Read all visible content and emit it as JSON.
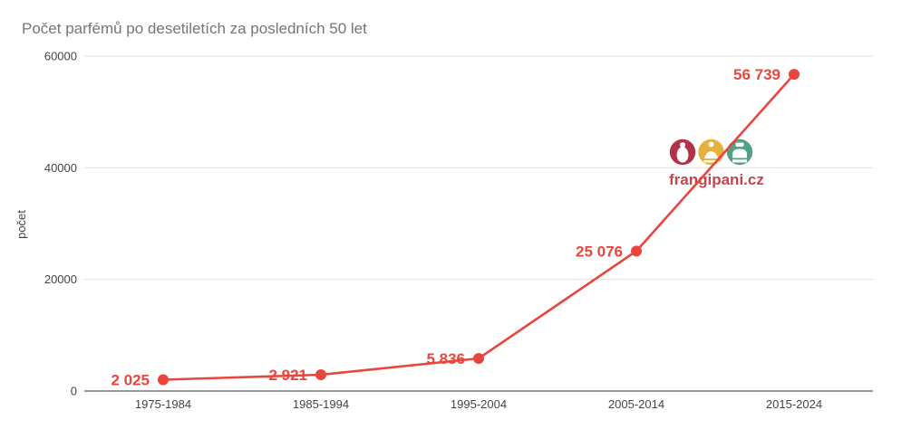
{
  "title": "Počet parfémů po desetiletích za posledních 50 let",
  "chart_data": {
    "type": "line",
    "title": "Počet parfémů po desetiletích za posledních 50 let",
    "categories": [
      "1975-1984",
      "1985-1994",
      "1995-2004",
      "2005-2014",
      "2015-2024"
    ],
    "values": [
      2025,
      2921,
      5836,
      25076,
      56739
    ],
    "point_labels": [
      "2 025",
      "2 921",
      "5 836",
      "25 076",
      "56 739"
    ],
    "xlabel": "",
    "ylabel": "počet",
    "ylim": [
      0,
      60000
    ],
    "yticks": [
      0,
      20000,
      40000,
      60000
    ],
    "ytick_labels": [
      "0",
      "20000",
      "40000",
      "60000"
    ],
    "grid": true,
    "legend": "none",
    "series_color": "#e8463c",
    "grid_color": "#e0e0e0",
    "axis_line_color": "#757575",
    "tick_color": "#444444",
    "title_color": "#757575"
  },
  "watermark": {
    "text": "frangipani.cz",
    "text_color": "#c4454f",
    "bottle_colors": [
      "#b23349",
      "#e7b13e",
      "#4fa287"
    ]
  }
}
